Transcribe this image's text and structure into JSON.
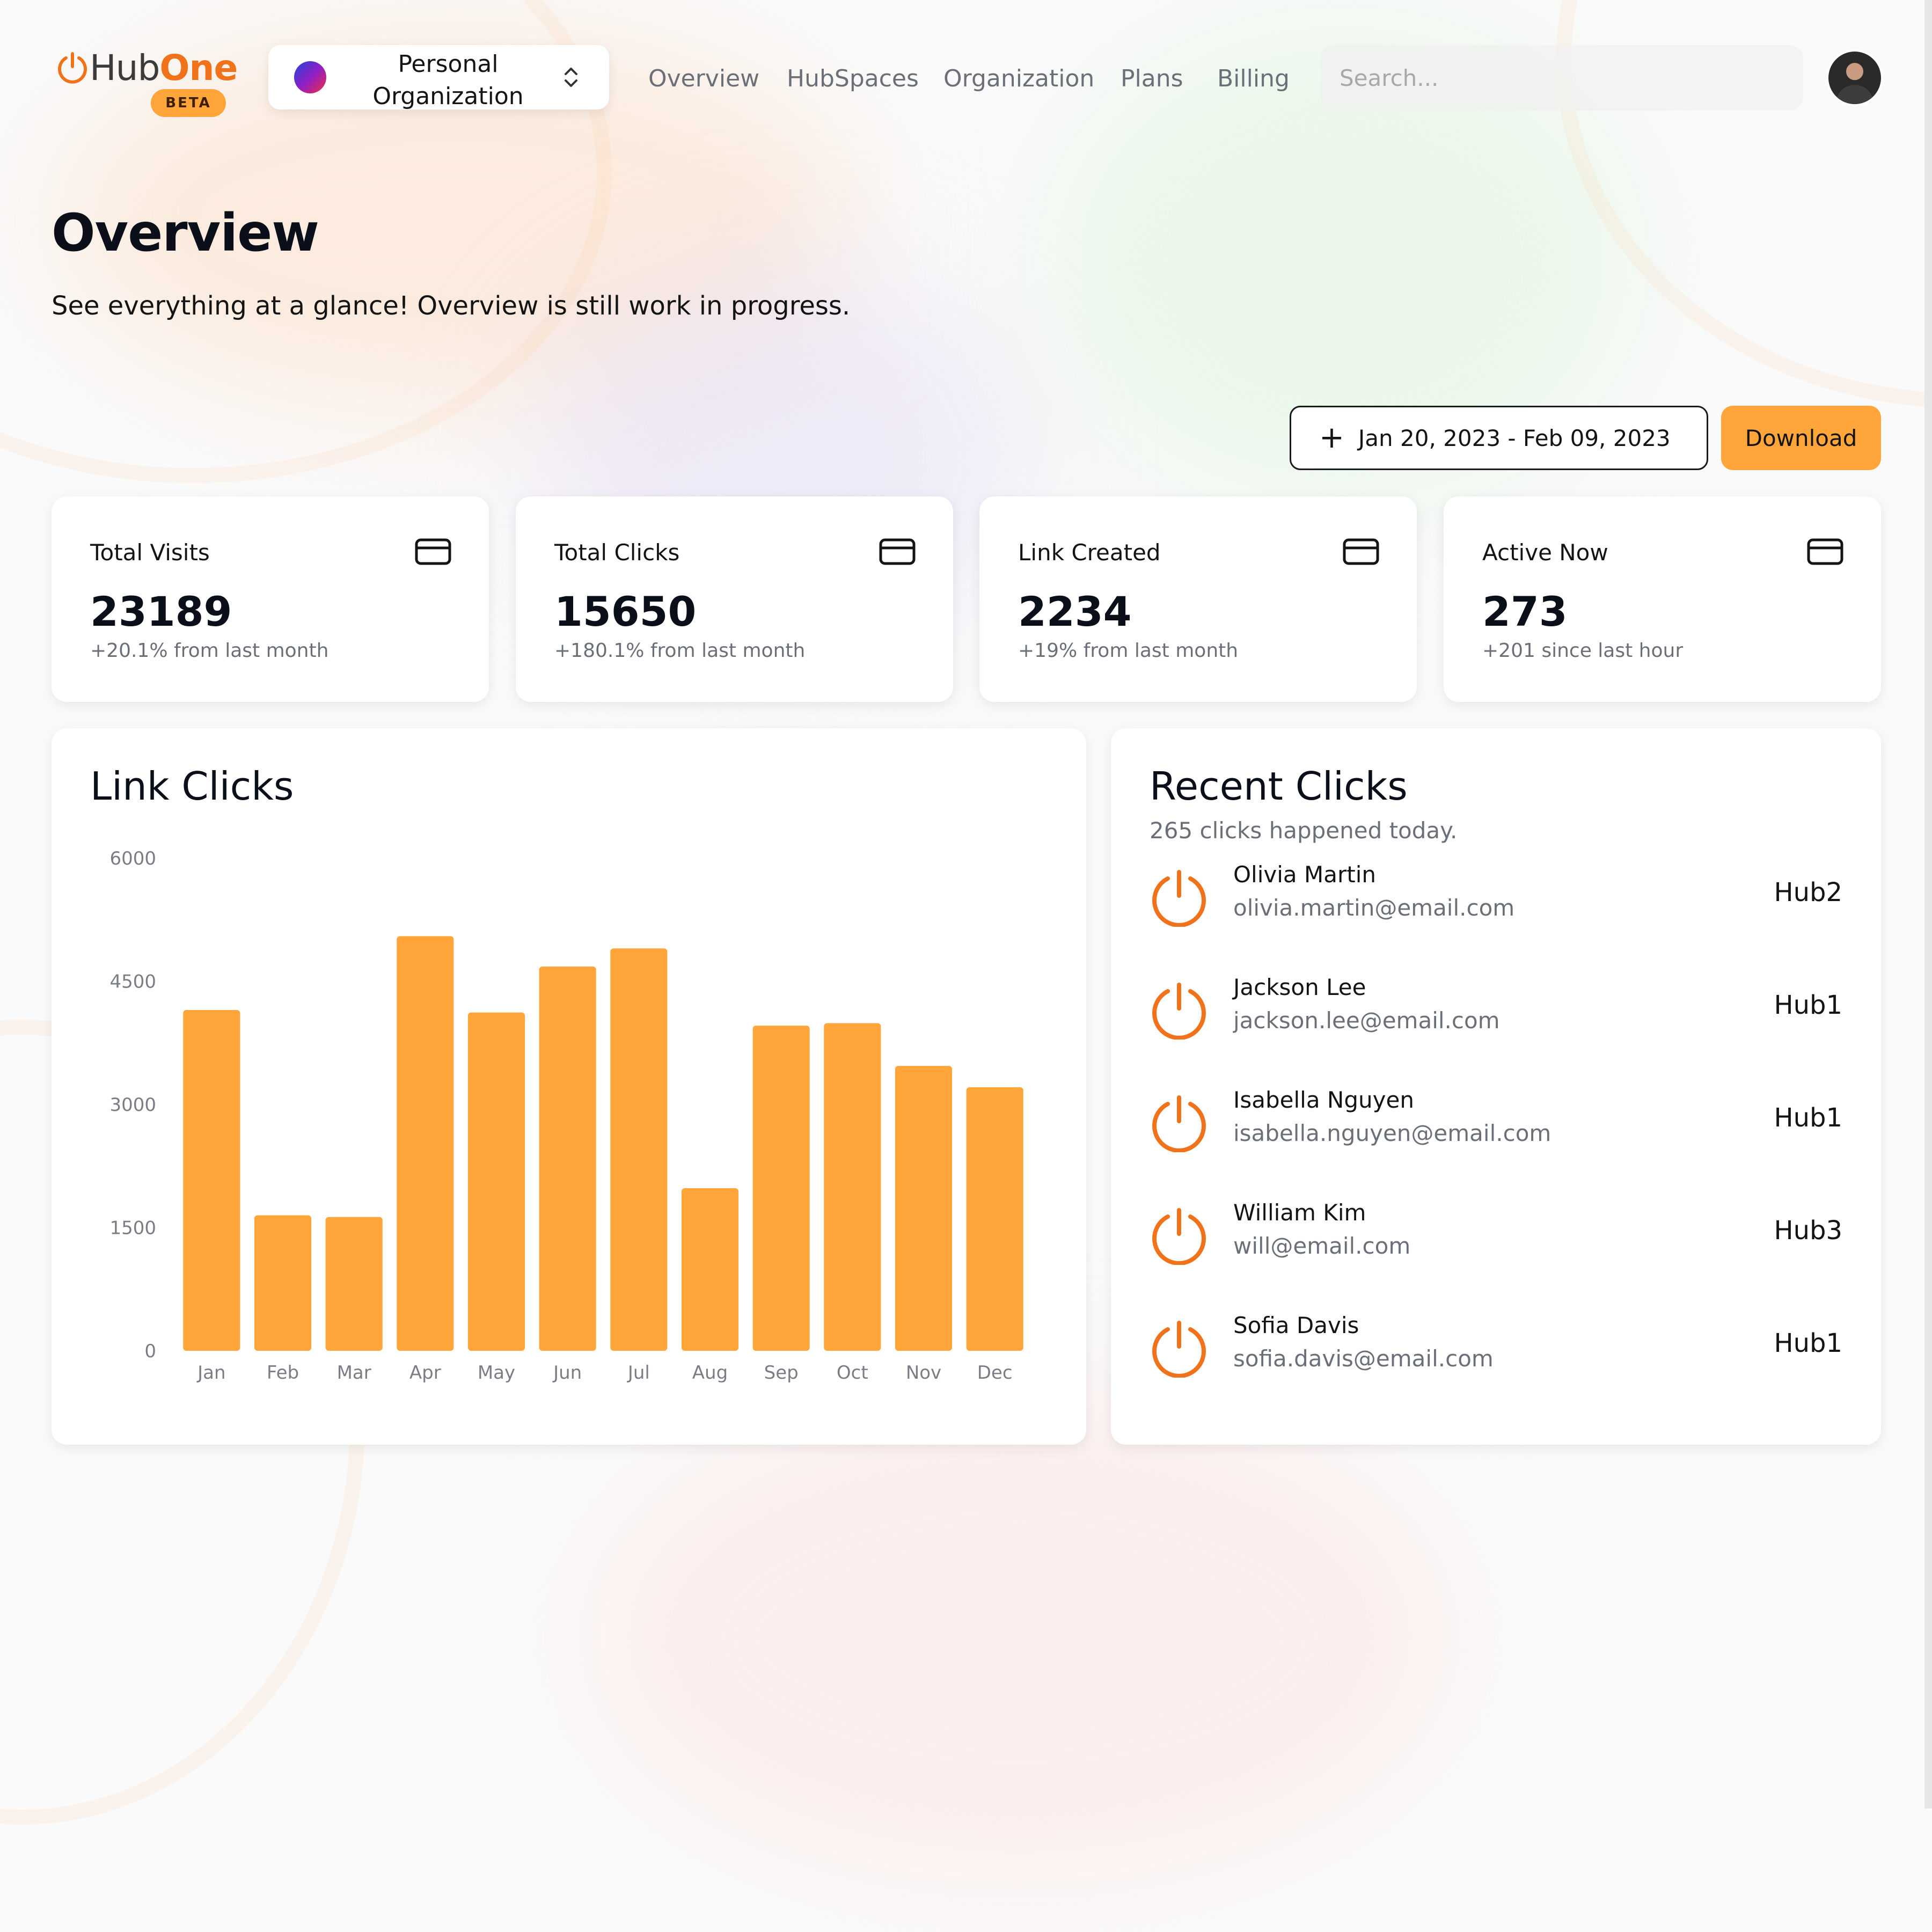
{
  "brand": {
    "name_part1": "Hub",
    "name_part2": "One",
    "badge": "BETA",
    "accent": "#f0731c"
  },
  "org_switcher": {
    "label": "Personal Organization",
    "icon": "chevron-up-down-icon"
  },
  "nav": {
    "items": [
      "Overview",
      "HubSpaces",
      "Organization",
      "Plans",
      "Billing"
    ]
  },
  "search": {
    "placeholder": "Search..."
  },
  "page": {
    "title": "Overview",
    "subtitle": "See everything at a glance! Overview is still work in progress."
  },
  "toolbar": {
    "date_range": "Jan 20, 2023 - Feb 09, 2023",
    "download_label": "Download",
    "download_color": "#ffa53a"
  },
  "stats": [
    {
      "label": "Total Visits",
      "value": "23189",
      "delta": "+20.1% from last month",
      "icon": "credit-card-icon"
    },
    {
      "label": "Total Clicks",
      "value": "15650",
      "delta": "+180.1% from last month",
      "icon": "credit-card-icon"
    },
    {
      "label": "Link Created",
      "value": "2234",
      "delta": "+19% from last month",
      "icon": "credit-card-icon"
    },
    {
      "label": "Active Now",
      "value": "273",
      "delta": "+201 since last hour",
      "icon": "credit-card-icon"
    }
  ],
  "chart_data": {
    "type": "bar",
    "title": "Link Clicks",
    "categories": [
      "Jan",
      "Feb",
      "Mar",
      "Apr",
      "May",
      "Jun",
      "Jul",
      "Aug",
      "Sep",
      "Oct",
      "Nov",
      "Dec"
    ],
    "values": [
      4150,
      1650,
      1630,
      5050,
      4120,
      4680,
      4900,
      1980,
      3960,
      3990,
      3470,
      3210
    ],
    "yticks": [
      "6000",
      "4500",
      "3000",
      "1500",
      "0"
    ],
    "ylim": [
      0,
      6000
    ],
    "grid": false,
    "bar_color": "#ffa53a"
  },
  "recent": {
    "title": "Recent Clicks",
    "subtitle": "265 clicks happened today.",
    "items": [
      {
        "name": "Olivia Martin",
        "email": "olivia.martin@email.com",
        "hub": "Hub2"
      },
      {
        "name": "Jackson Lee",
        "email": "jackson.lee@email.com",
        "hub": "Hub1"
      },
      {
        "name": "Isabella Nguyen",
        "email": "isabella.nguyen@email.com",
        "hub": "Hub1"
      },
      {
        "name": "William Kim",
        "email": "will@email.com",
        "hub": "Hub3"
      },
      {
        "name": "Sofia Davis",
        "email": "sofia.davis@email.com",
        "hub": "Hub1"
      }
    ],
    "icon": "power-icon",
    "icon_color": "#f0731c"
  }
}
